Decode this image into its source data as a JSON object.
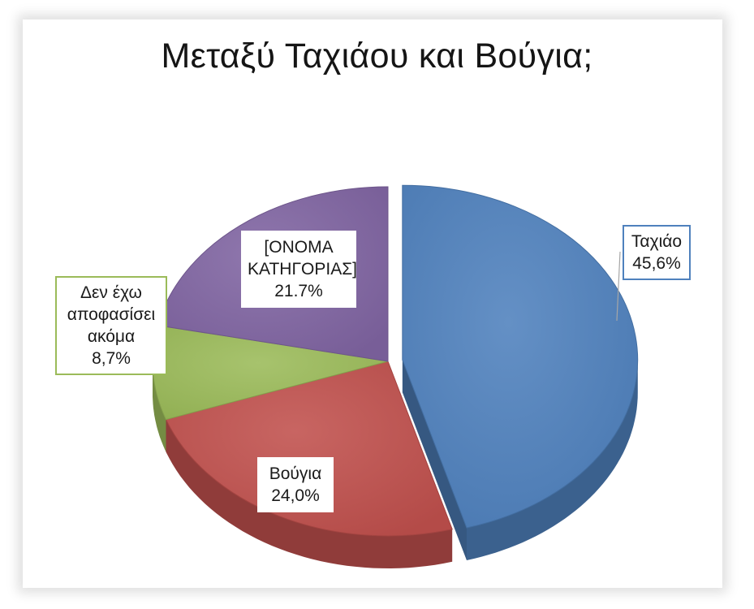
{
  "chart_data": {
    "type": "pie",
    "title": "Μεταξύ Ταχιάου και Βούγια;",
    "slices": [
      {
        "name": "Ταχιάο",
        "value": 45.6,
        "label": "45,6%",
        "color": "#4f81bd",
        "exploded": true
      },
      {
        "name": "Βούγια",
        "value": 24.0,
        "label": "24,0%",
        "color": "#c0504d",
        "exploded": false
      },
      {
        "name": "Δεν έχω αποφασίσει ακόμα",
        "value": 8.7,
        "label": "8,7%",
        "color": "#9bbb59",
        "exploded": false
      },
      {
        "name": "[ΟΝΟΜΑ ΚΑΤΗΓΟΡΙΑΣ]",
        "value": 21.7,
        "label": "21.7%",
        "color": "#8064a2",
        "exploded": false
      }
    ],
    "data_labels": [
      {
        "lines": [
          "Ταχιάο",
          "45,6%"
        ],
        "border": "#4f81bd"
      },
      {
        "lines": [
          "Βούγια",
          "24,0%"
        ],
        "border": "#ffffff"
      },
      {
        "lines": [
          "Δεν έχω",
          "αποφασίσει",
          "ακόμα",
          "8,7%"
        ],
        "border": "#9bbb59"
      },
      {
        "lines": [
          "[ΟΝΟΜΑ",
          "ΚΑΤΗΓΟΡΙΑΣ]",
          "21.7%"
        ],
        "border": "#ffffff"
      }
    ],
    "style": "3d-pie"
  }
}
